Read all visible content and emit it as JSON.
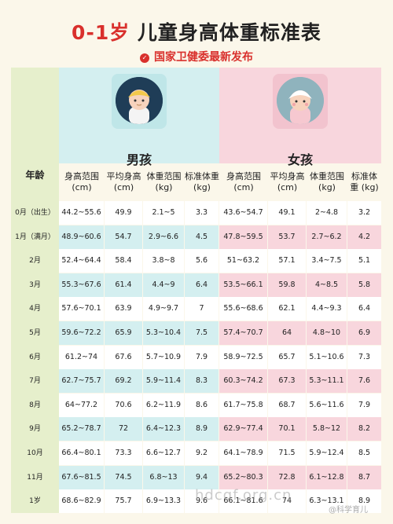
{
  "header": {
    "title_red": "0-1岁",
    "title_rest": " 儿童身高体重标准表",
    "subtitle": "国家卫健委最新发布"
  },
  "genders": {
    "boy": "男孩",
    "girl": "女孩"
  },
  "columns": {
    "age": "年龄",
    "height_range": "身高范围 (cm)",
    "avg_height": "平均身高 (cm)",
    "weight_range": "体重范围 (kg)",
    "std_weight": "标准体重 (kg)"
  },
  "rows": [
    {
      "age": "0月（出生）",
      "b_hr": "44.2~55.6",
      "b_avg": "49.9",
      "b_wr": "2.1~5",
      "b_sw": "3.3",
      "g_hr": "43.6~54.7",
      "g_avg": "49.1",
      "g_wr": "2~4.8",
      "g_sw": "3.2"
    },
    {
      "age": "1月（满月）",
      "b_hr": "48.9~60.6",
      "b_avg": "54.7",
      "b_wr": "2.9~6.6",
      "b_sw": "4.5",
      "g_hr": "47.8~59.5",
      "g_avg": "53.7",
      "g_wr": "2.7~6.2",
      "g_sw": "4.2"
    },
    {
      "age": "2月",
      "b_hr": "52.4~64.4",
      "b_avg": "58.4",
      "b_wr": "3.8~8",
      "b_sw": "5.6",
      "g_hr": "51~63.2",
      "g_avg": "57.1",
      "g_wr": "3.4~7.5",
      "g_sw": "5.1"
    },
    {
      "age": "3月",
      "b_hr": "55.3~67.6",
      "b_avg": "61.4",
      "b_wr": "4.4~9",
      "b_sw": "6.4",
      "g_hr": "53.5~66.1",
      "g_avg": "59.8",
      "g_wr": "4~8.5",
      "g_sw": "5.8"
    },
    {
      "age": "4月",
      "b_hr": "57.6~70.1",
      "b_avg": "63.9",
      "b_wr": "4.9~9.7",
      "b_sw": "7",
      "g_hr": "55.6~68.6",
      "g_avg": "62.1",
      "g_wr": "4.4~9.3",
      "g_sw": "6.4"
    },
    {
      "age": "5月",
      "b_hr": "59.6~72.2",
      "b_avg": "65.9",
      "b_wr": "5.3~10.4",
      "b_sw": "7.5",
      "g_hr": "57.4~70.7",
      "g_avg": "64",
      "g_wr": "4.8~10",
      "g_sw": "6.9"
    },
    {
      "age": "6月",
      "b_hr": "61.2~74",
      "b_avg": "67.6",
      "b_wr": "5.7~10.9",
      "b_sw": "7.9",
      "g_hr": "58.9~72.5",
      "g_avg": "65.7",
      "g_wr": "5.1~10.6",
      "g_sw": "7.3"
    },
    {
      "age": "7月",
      "b_hr": "62.7~75.7",
      "b_avg": "69.2",
      "b_wr": "5.9~11.4",
      "b_sw": "8.3",
      "g_hr": "60.3~74.2",
      "g_avg": "67.3",
      "g_wr": "5.3~11.1",
      "g_sw": "7.6"
    },
    {
      "age": "8月",
      "b_hr": "64~77.2",
      "b_avg": "70.6",
      "b_wr": "6.2~11.9",
      "b_sw": "8.6",
      "g_hr": "61.7~75.8",
      "g_avg": "68.7",
      "g_wr": "5.6~11.6",
      "g_sw": "7.9"
    },
    {
      "age": "9月",
      "b_hr": "65.2~78.7",
      "b_avg": "72",
      "b_wr": "6.4~12.3",
      "b_sw": "8.9",
      "g_hr": "62.9~77.4",
      "g_avg": "70.1",
      "g_wr": "5.8~12",
      "g_sw": "8.2"
    },
    {
      "age": "10月",
      "b_hr": "66.4~80.1",
      "b_avg": "73.3",
      "b_wr": "6.6~12.7",
      "b_sw": "9.2",
      "g_hr": "64.1~78.9",
      "g_avg": "71.5",
      "g_wr": "5.9~12.4",
      "g_sw": "8.5"
    },
    {
      "age": "11月",
      "b_hr": "67.6~81.5",
      "b_avg": "74.5",
      "b_wr": "6.8~13",
      "b_sw": "9.4",
      "g_hr": "65.2~80.3",
      "g_avg": "72.8",
      "g_wr": "6.1~12.8",
      "g_sw": "8.7"
    },
    {
      "age": "1岁",
      "b_hr": "68.6~82.9",
      "b_avg": "75.7",
      "b_wr": "6.9~13.3",
      "b_sw": "9.6",
      "g_hr": "66.1~81.6",
      "g_avg": "74",
      "g_wr": "6.3~13.1",
      "g_sw": "8.9"
    }
  ],
  "watermark": "hdcqf.org.cn",
  "watermark_account": "@科学育儿"
}
